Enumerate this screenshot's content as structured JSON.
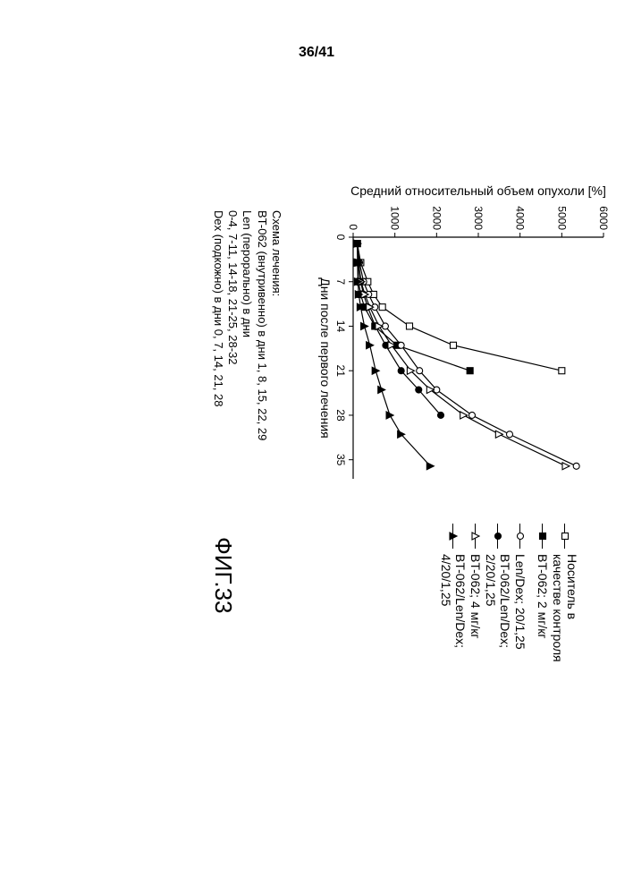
{
  "page_number": "36/41",
  "figure_label": "ФИГ.33",
  "chart": {
    "type": "line",
    "x_label": "Дни после первого лечения",
    "y_label": "Средний относительный объем опухоли [%]",
    "label_fontsize": 14,
    "background_color": "#ffffff",
    "axis_color": "#000000",
    "line_color": "#000000",
    "line_width": 1.2,
    "x": {
      "min": 0,
      "max": 38,
      "tick_step": 7,
      "ticks": [
        0,
        7,
        14,
        21,
        28,
        35
      ]
    },
    "y": {
      "min": 0,
      "max": 6000,
      "tick_step": 1000,
      "ticks": [
        0,
        1000,
        2000,
        3000,
        4000,
        5000,
        6000
      ]
    },
    "series": [
      {
        "id": "vehicle",
        "label": "Носитель в качестве контроля",
        "marker": "square-open",
        "marker_size": 7,
        "points": [
          [
            1,
            100
          ],
          [
            4,
            180
          ],
          [
            7,
            350
          ],
          [
            9,
            490
          ],
          [
            11,
            700
          ],
          [
            14,
            1350
          ],
          [
            17,
            2400
          ],
          [
            21,
            5000
          ]
        ]
      },
      {
        "id": "bt062-2",
        "label": "BT-062; 2 мг/кг",
        "marker": "square-filled",
        "marker_size": 7,
        "points": [
          [
            1,
            100
          ],
          [
            4,
            110
          ],
          [
            7,
            130
          ],
          [
            9,
            180
          ],
          [
            11,
            270
          ],
          [
            14,
            520
          ],
          [
            17,
            1050
          ],
          [
            21,
            2800
          ]
        ]
      },
      {
        "id": "len-dex",
        "label": "Len/Dex; 20/1,25",
        "marker": "circle-open",
        "marker_size": 7,
        "points": [
          [
            1,
            100
          ],
          [
            4,
            150
          ],
          [
            7,
            250
          ],
          [
            9,
            370
          ],
          [
            11,
            520
          ],
          [
            14,
            770
          ],
          [
            17,
            1150
          ],
          [
            21,
            1590
          ],
          [
            24,
            2000
          ],
          [
            28,
            2850
          ],
          [
            31,
            3750
          ],
          [
            36,
            5350
          ]
        ]
      },
      {
        "id": "bt062-len-dex-2",
        "label": "BT-062/Len/Dex; 2/20/1,25",
        "marker": "circle-filled",
        "marker_size": 7,
        "points": [
          [
            1,
            100
          ],
          [
            4,
            120
          ],
          [
            7,
            180
          ],
          [
            9,
            250
          ],
          [
            11,
            350
          ],
          [
            14,
            530
          ],
          [
            17,
            780
          ],
          [
            21,
            1150
          ],
          [
            24,
            1570
          ],
          [
            28,
            2100
          ]
        ]
      },
      {
        "id": "bt062-4",
        "label": "BT-062; 4 мг/кг",
        "marker": "triangle-open",
        "marker_size": 8,
        "points": [
          [
            1,
            100
          ],
          [
            4,
            130
          ],
          [
            7,
            190
          ],
          [
            9,
            280
          ],
          [
            11,
            400
          ],
          [
            14,
            620
          ],
          [
            17,
            920
          ],
          [
            21,
            1380
          ],
          [
            24,
            1850
          ],
          [
            28,
            2650
          ],
          [
            31,
            3500
          ],
          [
            36,
            5100
          ]
        ]
      },
      {
        "id": "bt062-len-dex-4",
        "label": "BT-062/Len/Dex; 4/20/1,25",
        "marker": "triangle-filled",
        "marker_size": 8,
        "points": [
          [
            1,
            100
          ],
          [
            4,
            105
          ],
          [
            7,
            115
          ],
          [
            9,
            135
          ],
          [
            11,
            180
          ],
          [
            14,
            270
          ],
          [
            17,
            400
          ],
          [
            21,
            540
          ],
          [
            24,
            680
          ],
          [
            28,
            880
          ],
          [
            31,
            1150
          ],
          [
            36,
            1850
          ]
        ]
      }
    ]
  },
  "schedule": {
    "title": "Схема лечения:",
    "lines": [
      "BT-062 (внутривенно) в дни 1, 8, 15, 22, 29",
      "Len (перорально) в дни",
      "0-4, 7-11, 14-18, 21-25, 28-32",
      "Dex (подкожно) в дни 0, 7, 14, 21, 28"
    ]
  }
}
